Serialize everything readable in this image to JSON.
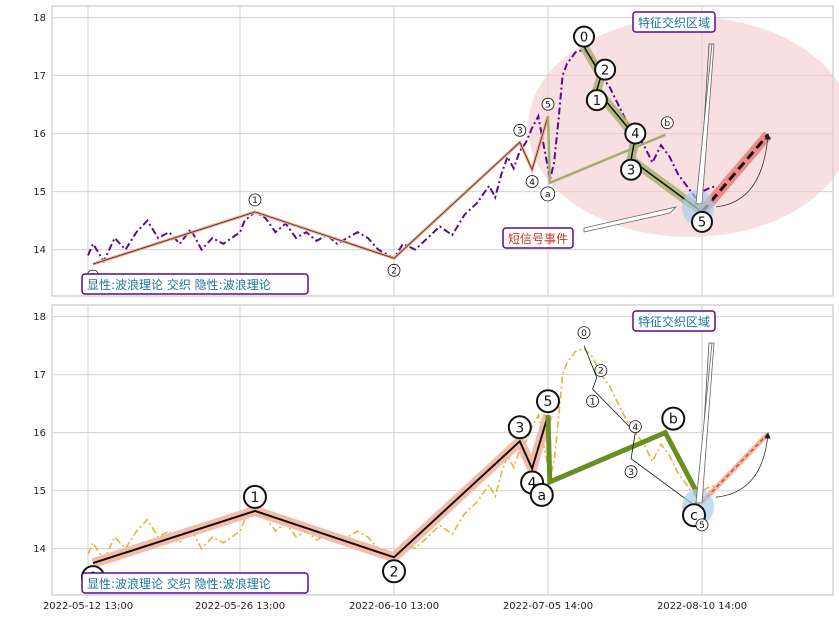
{
  "chart_data": [
    {
      "type": "line",
      "panel": "top",
      "title": "",
      "ylim": [
        13.2,
        18.2
      ],
      "yticks": [
        14,
        15,
        16,
        17,
        18
      ],
      "grid": true,
      "price_color": "#5b0a91",
      "price_style": "dash-dot",
      "price_series": [
        {
          "x": "2022-05-12 13:00",
          "y": 13.9
        },
        {
          "x": "2022-05-13",
          "y": 14.1
        },
        {
          "x": "2022-05-14",
          "y": 13.8
        },
        {
          "x": "2022-05-15",
          "y": 14.2
        },
        {
          "x": "2022-05-16",
          "y": 14.0
        },
        {
          "x": "2022-05-17",
          "y": 14.3
        },
        {
          "x": "2022-05-18",
          "y": 14.5
        },
        {
          "x": "2022-05-19",
          "y": 14.2
        },
        {
          "x": "2022-05-20",
          "y": 14.3
        },
        {
          "x": "2022-05-21",
          "y": 14.1
        },
        {
          "x": "2022-05-22",
          "y": 14.35
        },
        {
          "x": "2022-05-23",
          "y": 14.0
        },
        {
          "x": "2022-05-24",
          "y": 14.2
        },
        {
          "x": "2022-05-25",
          "y": 14.1
        },
        {
          "x": "2022-05-26 13:00",
          "y": 14.3
        },
        {
          "x": "2022-05-27",
          "y": 14.5
        },
        {
          "x": "2022-05-28",
          "y": 14.65
        },
        {
          "x": "2022-05-29",
          "y": 14.55
        },
        {
          "x": "2022-05-30",
          "y": 14.3
        },
        {
          "x": "2022-05-31",
          "y": 14.45
        },
        {
          "x": "2022-06-01",
          "y": 14.2
        },
        {
          "x": "2022-06-02",
          "y": 14.3
        },
        {
          "x": "2022-06-03",
          "y": 14.15
        },
        {
          "x": "2022-06-04",
          "y": 14.25
        },
        {
          "x": "2022-06-05",
          "y": 14.1
        },
        {
          "x": "2022-06-06",
          "y": 14.2
        },
        {
          "x": "2022-06-07",
          "y": 14.3
        },
        {
          "x": "2022-06-08",
          "y": 14.2
        },
        {
          "x": "2022-06-09",
          "y": 14.0
        },
        {
          "x": "2022-06-10 13:00",
          "y": 13.85
        },
        {
          "x": "2022-06-12",
          "y": 14.1
        },
        {
          "x": "2022-06-14",
          "y": 14.0
        },
        {
          "x": "2022-06-16",
          "y": 14.2
        },
        {
          "x": "2022-06-18",
          "y": 14.4
        },
        {
          "x": "2022-06-20",
          "y": 14.25
        },
        {
          "x": "2022-06-22",
          "y": 14.6
        },
        {
          "x": "2022-06-24",
          "y": 14.8
        },
        {
          "x": "2022-06-26",
          "y": 15.1
        },
        {
          "x": "2022-06-27",
          "y": 14.9
        },
        {
          "x": "2022-06-28",
          "y": 15.3
        },
        {
          "x": "2022-06-29",
          "y": 15.6
        },
        {
          "x": "2022-06-30",
          "y": 15.4
        },
        {
          "x": "2022-07-01",
          "y": 15.7
        },
        {
          "x": "2022-07-02",
          "y": 15.85
        },
        {
          "x": "2022-07-03",
          "y": 16.1
        },
        {
          "x": "2022-07-04",
          "y": 16.3
        },
        {
          "x": "2022-07-05 14:00",
          "y": 15.4
        },
        {
          "x": "2022-07-06",
          "y": 15.2
        },
        {
          "x": "2022-07-07",
          "y": 15.5
        },
        {
          "x": "2022-07-08",
          "y": 16.2
        },
        {
          "x": "2022-07-09",
          "y": 17.0
        },
        {
          "x": "2022-07-10",
          "y": 17.2
        },
        {
          "x": "2022-07-12",
          "y": 17.4
        },
        {
          "x": "2022-07-14",
          "y": 17.45
        },
        {
          "x": "2022-07-16",
          "y": 17.3
        },
        {
          "x": "2022-07-18",
          "y": 17.0
        },
        {
          "x": "2022-07-20",
          "y": 16.8
        },
        {
          "x": "2022-07-22",
          "y": 16.5
        },
        {
          "x": "2022-07-24",
          "y": 16.2
        },
        {
          "x": "2022-07-26",
          "y": 16.0
        },
        {
          "x": "2022-07-28",
          "y": 15.8
        },
        {
          "x": "2022-07-30",
          "y": 15.5
        },
        {
          "x": "2022-08-01",
          "y": 15.8
        },
        {
          "x": "2022-08-03",
          "y": 15.6
        },
        {
          "x": "2022-08-05",
          "y": 15.3
        },
        {
          "x": "2022-08-07",
          "y": 15.1
        },
        {
          "x": "2022-08-09",
          "y": 14.9
        },
        {
          "x": "2022-08-10 14:00",
          "y": 15.0
        },
        {
          "x": "2022-08-12",
          "y": 15.05
        },
        {
          "x": "2022-08-14",
          "y": 15.1
        }
      ],
      "wave_primary": [
        {
          "x": "2022-05-13",
          "y": 13.75,
          "label": "0"
        },
        {
          "x": "2022-05-28",
          "y": 14.65,
          "label": "1"
        },
        {
          "x": "2022-06-10 13:00",
          "y": 13.85,
          "label": "2"
        },
        {
          "x": "2022-07-01",
          "y": 15.85,
          "label": "3"
        },
        {
          "x": "2022-07-03",
          "y": 15.38,
          "label": "4"
        },
        {
          "x": "2022-07-05 14:00",
          "y": 16.3,
          "label": "5"
        }
      ],
      "wave_correction": [
        {
          "x": "2022-07-06",
          "y": 15.15,
          "label": "a"
        },
        {
          "x": "2022-08-02",
          "y": 15.98,
          "label": "b"
        }
      ],
      "wave_minor": [
        {
          "x": "2022-07-14",
          "y": 17.5,
          "label": "0"
        },
        {
          "x": "2022-07-18",
          "y": 17.0,
          "label": "2"
        },
        {
          "x": "2022-07-17",
          "y": 16.75,
          "label": "1"
        },
        {
          "x": "2022-07-26",
          "y": 15.95,
          "label": "4"
        },
        {
          "x": "2022-07-25",
          "y": 15.55,
          "label": "3"
        },
        {
          "x": "2022-08-10 14:00",
          "y": 14.65,
          "label": "5"
        }
      ],
      "forecast": [
        {
          "x": "2022-08-10 14:00",
          "y": 14.65
        },
        {
          "x": "2022-08-26",
          "y": 15.98
        }
      ],
      "annotations": {
        "bottom_left_box": "显性:波浪理论 交织 隐性:波浪理论",
        "feature_zone": "特征交织区域",
        "short_signal": "短信号事件"
      },
      "colors": {
        "feature_zone_fill": "#f2c4c8",
        "forecast_band": "#f08080",
        "correction_line": "#a4ad74",
        "minor_band": "#a9b16f"
      }
    },
    {
      "type": "line",
      "panel": "bottom",
      "title": "",
      "ylim": [
        13.2,
        18.2
      ],
      "yticks": [
        14,
        15,
        16,
        17,
        18
      ],
      "grid": true,
      "price_color": "#e6b33a",
      "price_style": "dash-dot",
      "wave_primary": [
        {
          "x": "2022-05-13",
          "y": 13.75,
          "label": "0"
        },
        {
          "x": "2022-05-28",
          "y": 14.65,
          "label": "1"
        },
        {
          "x": "2022-06-10 13:00",
          "y": 13.85,
          "label": "2"
        },
        {
          "x": "2022-07-01",
          "y": 15.85,
          "label": "3"
        },
        {
          "x": "2022-07-03",
          "y": 15.38,
          "label": "4"
        },
        {
          "x": "2022-07-05 14:00",
          "y": 16.3,
          "label": "5"
        }
      ],
      "wave_correction": [
        {
          "x": "2022-07-06",
          "y": 15.15,
          "label": "a"
        },
        {
          "x": "2022-08-02",
          "y": 16.0,
          "label": "b"
        },
        {
          "x": "2022-08-10 14:00",
          "y": 14.8,
          "label": "c"
        }
      ],
      "wave_minor": [
        {
          "x": "2022-07-14",
          "y": 17.5,
          "label": "0"
        },
        {
          "x": "2022-07-17",
          "y": 16.95,
          "label": "2"
        },
        {
          "x": "2022-07-16",
          "y": 16.75,
          "label": "1"
        },
        {
          "x": "2022-07-26",
          "y": 16.0,
          "label": "4"
        },
        {
          "x": "2022-07-25",
          "y": 15.55,
          "label": "3"
        },
        {
          "x": "2022-08-10 14:00",
          "y": 14.65,
          "label": "5"
        }
      ],
      "forecast": [
        {
          "x": "2022-08-10 14:00",
          "y": 14.8
        },
        {
          "x": "2022-08-26",
          "y": 15.98
        }
      ],
      "annotations": {
        "bottom_left_box": "显性:波浪理论 交织 隐性:波浪理论",
        "feature_zone": "特征交织区域"
      },
      "colors": {
        "primary_band": "#f4b6a0",
        "correction_line": "#6b8e23",
        "forecast_band": "#f4b6a0"
      }
    }
  ],
  "x_axis": {
    "tick_labels": [
      "2022-05-12 13:00",
      "2022-05-26 13:00",
      "2022-06-10 13:00",
      "2022-07-05 14:00",
      "2022-08-10 14:00"
    ]
  }
}
